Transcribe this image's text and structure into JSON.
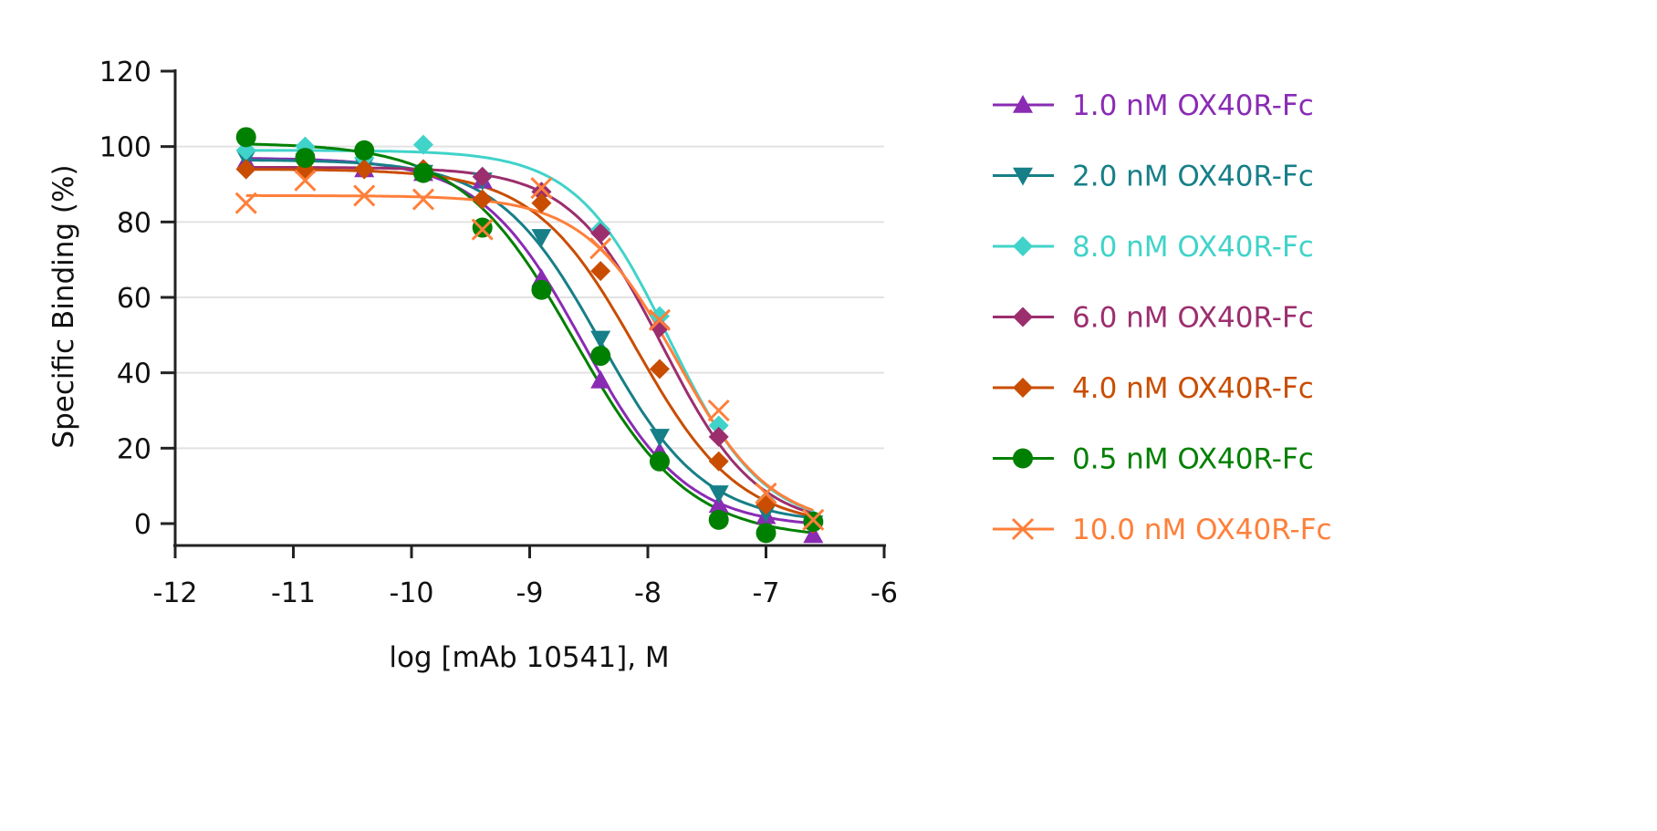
{
  "chart_data": {
    "type": "scatter",
    "xlabel": "log [mAb 10541], M",
    "ylabel": "Specific Binding (%)",
    "xlim": [
      -12,
      -6
    ],
    "ylim": [
      -5,
      120
    ],
    "x_ticks": [
      "-12",
      "-11",
      "-10",
      "-9",
      "-8",
      "-7",
      "-6"
    ],
    "y_ticks": [
      "0",
      "20",
      "40",
      "60",
      "80",
      "100",
      "120"
    ],
    "grid": "horizontal",
    "legend": "right",
    "x": [
      -11.4,
      -10.9,
      -10.4,
      -9.9,
      -9.4,
      -8.9,
      -8.4,
      -7.9,
      -7.4,
      -7.0,
      -6.6
    ],
    "series": [
      {
        "name": "1.0 nM OX40R-Fc",
        "color": "#8a2bb4",
        "marker": "triangle-up",
        "values": [
          96,
          95,
          94,
          93,
          91,
          65,
          38,
          19,
          5,
          2,
          -3
        ],
        "fit": {
          "top": 97,
          "bottom": -1,
          "logIC50": -8.55,
          "hill": 1.0
        }
      },
      {
        "name": "2.0 nM OX40R-Fc",
        "color": "#167f88",
        "marker": "triangle-down",
        "values": [
          97,
          96,
          95,
          93,
          91,
          76,
          49,
          23,
          8,
          3,
          0
        ],
        "fit": {
          "top": 96.5,
          "bottom": 0,
          "logIC50": -8.4,
          "hill": 1.0
        }
      },
      {
        "name": "8.0 nM OX40R-Fc",
        "color": "#40d3c9",
        "marker": "diamond",
        "values": [
          99,
          100,
          97,
          100.5,
          92,
          88,
          78,
          55,
          26,
          6,
          1
        ],
        "fit": {
          "top": 99,
          "bottom": -1,
          "logIC50": -7.82,
          "hill": 1.1
        }
      },
      {
        "name": "6.0 nM OX40R-Fc",
        "color": "#9c2e6e",
        "marker": "diamond",
        "values": [
          94,
          94,
          94,
          94,
          92,
          88,
          77,
          52,
          23,
          5,
          0
        ],
        "fit": {
          "top": 94.5,
          "bottom": -1,
          "logIC50": -7.87,
          "hill": 1.1
        }
      },
      {
        "name": "4.0 nM OX40R-Fc",
        "color": "#c94d00",
        "marker": "diamond",
        "values": [
          94,
          94,
          94,
          94,
          86,
          85,
          67,
          41,
          16.5,
          5,
          0
        ],
        "fit": {
          "top": 94,
          "bottom": -1,
          "logIC50": -8.1,
          "hill": 1.0
        }
      },
      {
        "name": "0.5 nM OX40R-Fc",
        "color": "#008000",
        "marker": "circle",
        "values": [
          102.5,
          97,
          99,
          93,
          78.5,
          62,
          44.5,
          16.5,
          1,
          -2.5,
          0.5
        ],
        "fit": {
          "top": 101,
          "bottom": -4,
          "logIC50": -8.62,
          "hill": 0.9
        }
      },
      {
        "name": "10.0 nM OX40R-Fc",
        "color": "#ff7f3a",
        "marker": "x",
        "values": [
          85,
          91,
          87,
          86,
          78,
          89,
          73,
          54,
          30,
          8,
          1
        ],
        "fit": {
          "top": 87,
          "bottom": -1,
          "logIC50": -7.75,
          "hill": 1.1
        }
      }
    ]
  }
}
